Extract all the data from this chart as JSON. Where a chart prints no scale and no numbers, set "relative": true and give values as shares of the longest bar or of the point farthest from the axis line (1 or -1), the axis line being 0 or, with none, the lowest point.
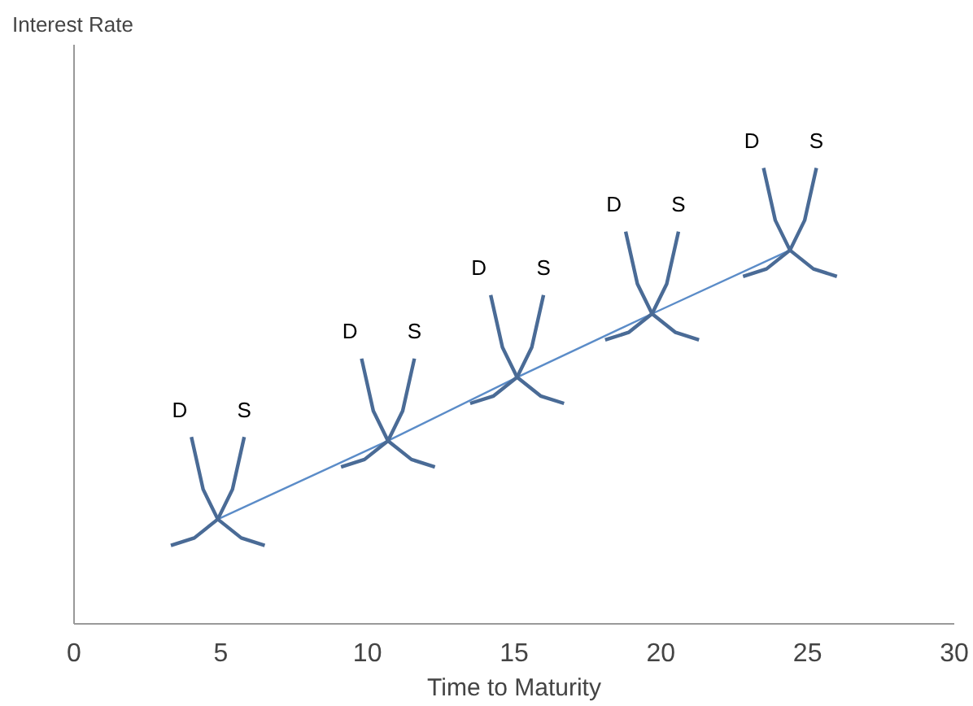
{
  "chart_data": {
    "type": "line",
    "relative": true,
    "xlabel": "Time to Maturity",
    "title": "Interest Rate",
    "x": [
      4.9,
      10.7,
      15.1,
      19.7,
      24.4
    ],
    "series": [
      {
        "color": "#5b8cc8",
        "values": [
          0.28,
          0.49,
          0.66,
          0.83,
          1.0
        ]
      }
    ],
    "xlim": [
      0,
      30
    ],
    "xticks": [
      0,
      5,
      10,
      15,
      20,
      25,
      30
    ],
    "annotations": [
      "D",
      "S",
      "D",
      "S",
      "D",
      "S",
      "D",
      "S",
      "D",
      "S"
    ],
    "grid": false,
    "marker": "none",
    "line_style": "solid"
  }
}
